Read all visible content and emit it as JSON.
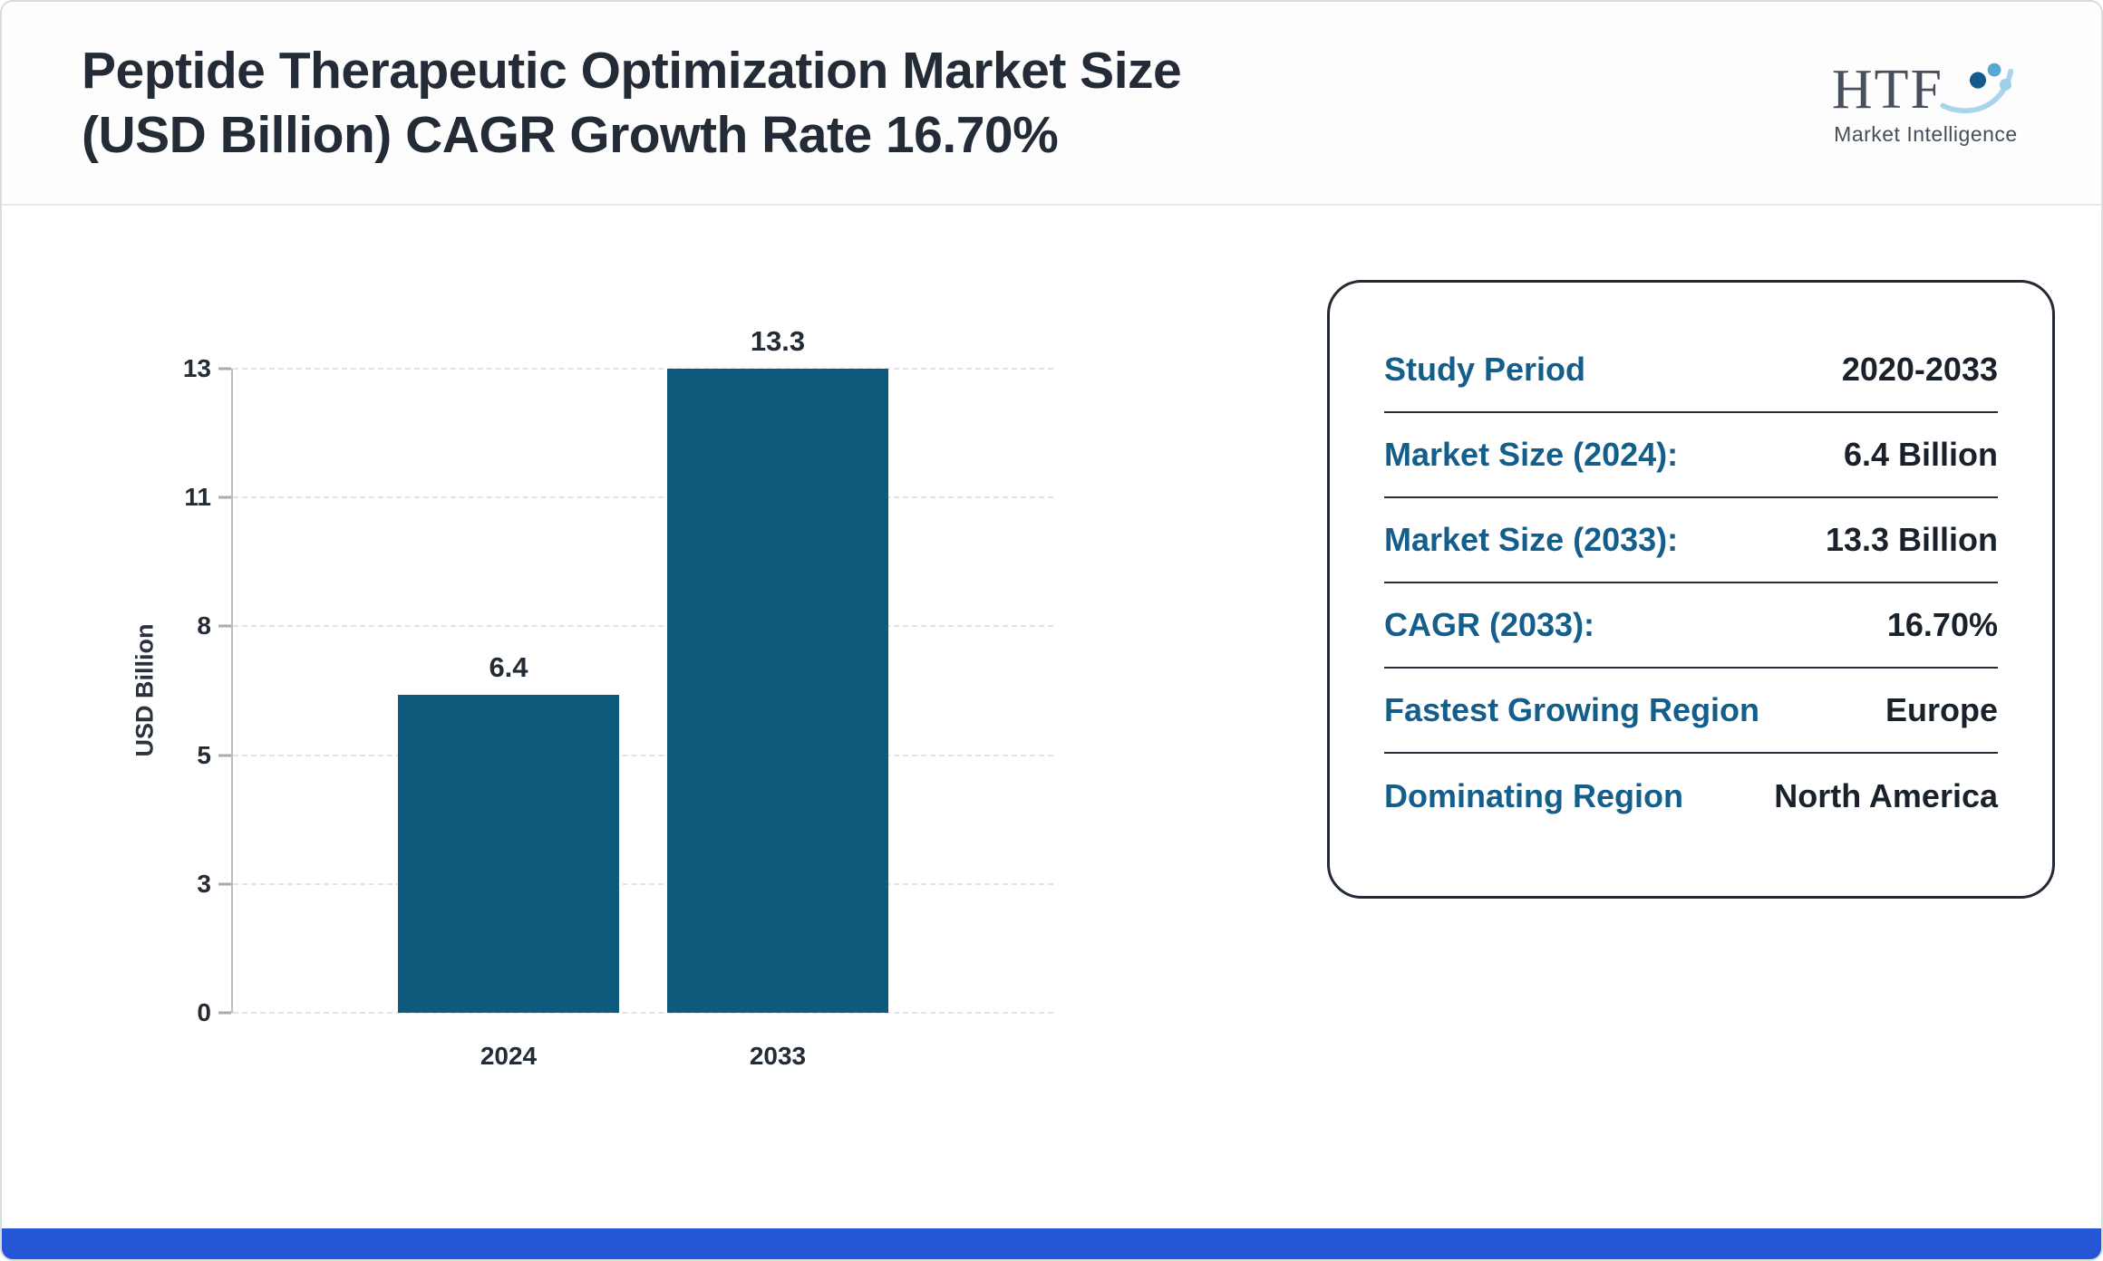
{
  "header": {
    "title_line1": "Peptide Therapeutic Optimization Market Size",
    "title_line2": "(USD Billion) CAGR Growth Rate 16.70%"
  },
  "logo": {
    "text": "HTF",
    "subtext": "Market Intelligence",
    "icon": "people-swoosh-icon"
  },
  "chart_data": {
    "type": "bar",
    "title": "Peptide Therapeutic Optimization Market Size (USD Billion) CAGR Growth Rate 16.70%",
    "categories": [
      "2024",
      "2033"
    ],
    "values": [
      6.4,
      13.3
    ],
    "xlabel": "",
    "ylabel": "USD Billion",
    "yticks": [
      0,
      3,
      5,
      8,
      11,
      13
    ],
    "ylim": [
      0,
      13
    ],
    "grid": true,
    "legend": "none"
  },
  "stats": {
    "rows": [
      {
        "label": "Study Period",
        "value": "2020-2033"
      },
      {
        "label": "Market Size (2024):",
        "value": "6.4 Billion"
      },
      {
        "label": "Market Size (2033):",
        "value": "13.3 Billion"
      },
      {
        "label": "CAGR (2033):",
        "value": "16.70%"
      },
      {
        "label": "Fastest Growing Region",
        "value": "Europe"
      },
      {
        "label": "Dominating Region",
        "value": "North America"
      }
    ]
  },
  "colors": {
    "bar": "#0d5a7c",
    "label_teal": "#145e8c",
    "accent_bottom": "#2355d4",
    "title_text": "#222b36"
  }
}
